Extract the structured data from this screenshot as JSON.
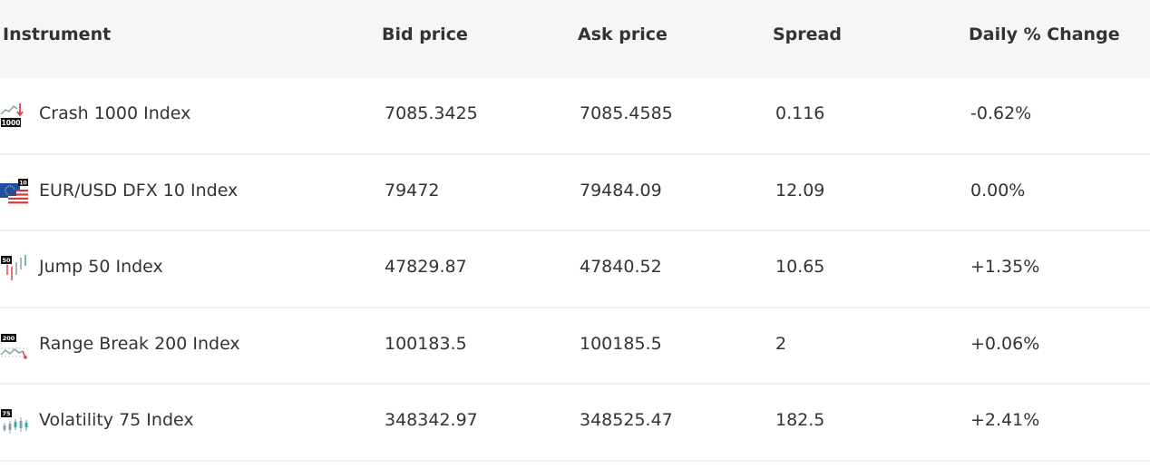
{
  "headers": {
    "instrument": "Instrument",
    "bid": "Bid price",
    "ask": "Ask price",
    "spread": "Spread",
    "change": "Daily % Change"
  },
  "rows": [
    {
      "icon": "crash-index-icon",
      "icon_badge": "1000",
      "name": "Crash 1000 Index",
      "bid": "7085.3425",
      "ask": "7085.4585",
      "spread": "0.116",
      "change": "-0.62%",
      "trend": "negative"
    },
    {
      "icon": "eur-usd-flag-icon",
      "icon_badge": "10",
      "name": "EUR/USD DFX 10 Index",
      "bid": "79472",
      "ask": "79484.09",
      "spread": "12.09",
      "change": "0.00%",
      "trend": "neutral"
    },
    {
      "icon": "jump-index-icon",
      "icon_badge": "50",
      "name": "Jump 50 Index",
      "bid": "47829.87",
      "ask": "47840.52",
      "spread": "10.65",
      "change": "+1.35%",
      "trend": "positive"
    },
    {
      "icon": "range-break-index-icon",
      "icon_badge": "200",
      "name": "Range Break 200 Index",
      "bid": "100183.5",
      "ask": "100185.5",
      "spread": "2",
      "change": "+0.06%",
      "trend": "positive"
    },
    {
      "icon": "volatility-index-icon",
      "icon_badge": "75",
      "name": "Volatility 75 Index",
      "bid": "348342.97",
      "ask": "348525.47",
      "spread": "182.5",
      "change": "+2.41%",
      "trend": "positive"
    }
  ],
  "colors": {
    "negative": "#e0434e",
    "positive": "#3aa6a0",
    "neutral": "#333333",
    "header_bg": "#f6f6f6"
  }
}
